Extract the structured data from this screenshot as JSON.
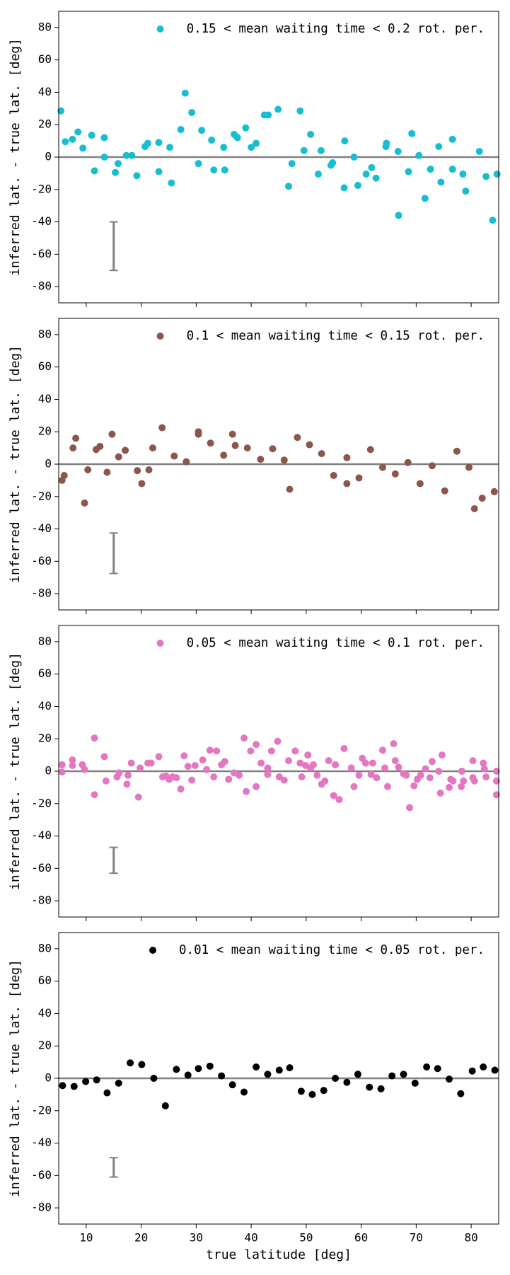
{
  "chart_data": [
    {
      "type": "scatter",
      "ylabel": "inferred lat. - true lat. [deg]",
      "xlim": [
        5,
        85
      ],
      "ylim": [
        -90,
        90
      ],
      "xticks": [
        10,
        20,
        30,
        40,
        50,
        60,
        70,
        80
      ],
      "xtick_labels": false,
      "yticks": [
        -80,
        -60,
        -40,
        -20,
        0,
        20,
        40,
        60,
        80
      ],
      "hline": 0,
      "legend": "upper right",
      "error_bar": {
        "x": 15,
        "y": -55,
        "err": 15,
        "color": "#808080"
      },
      "series": [
        {
          "name": "0.15 < mean waiting time < 0.2 rot. per.",
          "color": "#17becf",
          "x": [
            5.4,
            6.2,
            7.5,
            8.5,
            9.4,
            11,
            11.5,
            13.3,
            13.3,
            15.3,
            15.8,
            17.3,
            18.3,
            19.2,
            20.7,
            21.2,
            23.2,
            23.2,
            25.2,
            25.5,
            27.2,
            28,
            29.2,
            30.4,
            31,
            32.8,
            33.2,
            35,
            35.2,
            36.9,
            37.5,
            39,
            40,
            40.9,
            42.4,
            43.1,
            44.9,
            46.8,
            47.4,
            48.9,
            49.6,
            50.8,
            52.2,
            52.7,
            54.5,
            54.8,
            56.9,
            57,
            58.7,
            59.4,
            60.9,
            61.9,
            62.7,
            64.5,
            64.6,
            66.7,
            66.8,
            68.6,
            69.2,
            70.5,
            71.6,
            72.6,
            74.1,
            74.5,
            76.6,
            76.6,
            78.5,
            79,
            81.5,
            82.7,
            83.9,
            84.7
          ],
          "values": [
            28.5,
            9.5,
            11,
            15.5,
            5.5,
            13.5,
            -8.5,
            12,
            0,
            -9.5,
            -4,
            1,
            1,
            -11.5,
            6.5,
            8.5,
            9,
            -9,
            6,
            -16,
            17,
            39.5,
            27.5,
            -4,
            16.5,
            10.5,
            -8,
            6,
            -8,
            14,
            12,
            18,
            6,
            8.5,
            26,
            26,
            29.5,
            -18,
            -4,
            28.5,
            4,
            14,
            -10.5,
            4,
            -5,
            -3.5,
            -19,
            10,
            0,
            -17.5,
            -10.5,
            -6.5,
            -13,
            6.5,
            8.5,
            3.5,
            -36,
            -9,
            14.5,
            1,
            -25.5,
            -7.5,
            6.5,
            -15.5,
            11,
            -7.5,
            -10.5,
            -21,
            3.5,
            -12,
            -39,
            -10.5
          ]
        }
      ]
    },
    {
      "type": "scatter",
      "ylabel": "inferred lat. - true lat. [deg]",
      "xlim": [
        5,
        85
      ],
      "ylim": [
        -90,
        90
      ],
      "xticks": [
        10,
        20,
        30,
        40,
        50,
        60,
        70,
        80
      ],
      "xtick_labels": false,
      "yticks": [
        -80,
        -60,
        -40,
        -20,
        0,
        20,
        40,
        60,
        80
      ],
      "hline": 0,
      "legend": "upper right",
      "error_bar": {
        "x": 15,
        "y": -55,
        "err": 12.5,
        "color": "#808080"
      },
      "series": [
        {
          "name": "0.1 < mean waiting time < 0.15 rot. per.",
          "color": "#8c564b",
          "x": [
            5.6,
            6,
            7.6,
            8.1,
            9.7,
            10.3,
            11.8,
            12.5,
            13.8,
            14.7,
            15.9,
            17.1,
            19.3,
            20.1,
            21.4,
            22.1,
            23.8,
            26,
            28.2,
            30.4,
            30.4,
            32.6,
            35,
            36.6,
            37.1,
            39.3,
            41.7,
            43.9,
            46,
            47,
            48.4,
            50.6,
            52.8,
            55,
            57.4,
            57.4,
            59.6,
            61.7,
            63.9,
            66.2,
            68.5,
            70.7,
            72.9,
            75.2,
            77.4,
            79.6,
            80.6,
            82,
            84.2
          ],
          "values": [
            -10,
            -7,
            10,
            16,
            -24,
            -3.5,
            9,
            11,
            -5,
            18.5,
            4.5,
            8.5,
            -4,
            -12,
            -3.5,
            10,
            22.5,
            5,
            1.5,
            20,
            18.5,
            13,
            5.5,
            18.5,
            11.5,
            10,
            3,
            9.5,
            2.5,
            -15.5,
            16.5,
            12,
            6.5,
            -7,
            4,
            -12,
            -8.5,
            9,
            -2,
            -6,
            1,
            -12,
            -1,
            -16.5,
            8,
            -2,
            -27.5,
            -21,
            -17
          ]
        }
      ]
    },
    {
      "type": "scatter",
      "ylabel": "inferred lat. - true lat. [deg]",
      "xlim": [
        5,
        85
      ],
      "ylim": [
        -90,
        90
      ],
      "xticks": [
        10,
        20,
        30,
        40,
        50,
        60,
        70,
        80
      ],
      "xtick_labels": false,
      "yticks": [
        -80,
        -60,
        -40,
        -20,
        0,
        20,
        40,
        60,
        80
      ],
      "hline": 0,
      "legend": "upper right",
      "error_bar": {
        "x": 15,
        "y": -55,
        "err": 8,
        "color": "#808080"
      },
      "series": [
        {
          "name": "0.05 < mean waiting time < 0.1 rot. per.",
          "color": "#e377c2",
          "x": [
            5.6,
            5.6,
            7.5,
            7.5,
            9.3,
            9.7,
            11.5,
            11.5,
            13.3,
            13.6,
            15.6,
            16,
            17.4,
            17.6,
            18.2,
            19.5,
            19.8,
            21.2,
            21.8,
            23.2,
            23.9,
            24.5,
            25.1,
            25.7,
            26.4,
            27.2,
            27.8,
            28.5,
            29.2,
            29.8,
            31.2,
            31.9,
            32.5,
            33.2,
            33.7,
            34.6,
            35.2,
            35.9,
            36.9,
            37.8,
            38.7,
            39.1,
            39.9,
            40.9,
            40.9,
            41.8,
            43,
            43,
            43.7,
            44.8,
            45.1,
            46,
            46.8,
            48,
            48.9,
            49.2,
            49.9,
            50.3,
            50.8,
            51.3,
            52,
            52.8,
            53.4,
            54.1,
            55,
            55.3,
            56,
            56.9,
            58.2,
            58.7,
            59.6,
            60.2,
            60.8,
            61.8,
            62.1,
            62.8,
            63.9,
            64.3,
            64.8,
            65.9,
            66.2,
            66.8,
            67.7,
            68.2,
            68.8,
            69.6,
            70.2,
            70.8,
            71.7,
            72.5,
            72.9,
            74.1,
            74.4,
            74.7,
            76,
            76.3,
            76.7,
            78.2,
            78.3,
            78.6,
            80.3,
            80.3,
            80.6,
            82.2,
            82.4,
            82.7,
            84.6,
            84.6,
            84.6
          ],
          "values": [
            4,
            -0.5,
            7,
            3.5,
            4,
            1,
            20.5,
            -14.5,
            9,
            -6,
            -3.5,
            -1,
            -8,
            -2.5,
            5,
            -16,
            2,
            5,
            5,
            9,
            -3.5,
            -3,
            -5,
            -3.5,
            -4,
            -11,
            9.5,
            3,
            -5.5,
            3.5,
            7,
            1,
            13,
            -3.5,
            12.5,
            4,
            6,
            -5,
            -1,
            -2.5,
            20.5,
            -12.5,
            12.5,
            16.5,
            -9.5,
            5,
            2,
            -2,
            12.5,
            18.5,
            -3.5,
            -5.5,
            6.5,
            12.5,
            5,
            -3.5,
            3.5,
            10,
            2,
            4,
            -2.5,
            -8,
            -6,
            6.5,
            -15,
            4,
            -17.5,
            14,
            2,
            -9.5,
            -2.5,
            8,
            5,
            -2,
            5,
            -4,
            13,
            2,
            -9.5,
            17,
            6.5,
            2.5,
            -1.5,
            -2.5,
            -22.5,
            -9,
            -5,
            -2.5,
            1.5,
            -4,
            6,
            0,
            -13.5,
            10,
            -10,
            -5,
            -6,
            -9.5,
            0,
            -6,
            6.5,
            -4,
            -6,
            5,
            1.5,
            -3.5,
            0,
            -6,
            -14.5
          ]
        }
      ]
    },
    {
      "type": "scatter",
      "ylabel": "inferred lat. - true lat. [deg]",
      "xlabel": "true latitude [deg]",
      "xlim": [
        5,
        85
      ],
      "ylim": [
        -90,
        90
      ],
      "xticks": [
        10,
        20,
        30,
        40,
        50,
        60,
        70,
        80
      ],
      "xtick_labels": true,
      "yticks": [
        -80,
        -60,
        -40,
        -20,
        0,
        20,
        40,
        60,
        80
      ],
      "hline": 0,
      "legend": "upper right",
      "error_bar": {
        "x": 15,
        "y": -55,
        "err": 6,
        "color": "#808080"
      },
      "series": [
        {
          "name": "0.01 < mean waiting time < 0.05 rot. per.",
          "color": "#000000",
          "x": [
            5.7,
            7.8,
            9.9,
            11.9,
            13.8,
            15.9,
            18,
            20.1,
            22.3,
            24.4,
            26.4,
            28.5,
            30.4,
            32.5,
            34.6,
            36.6,
            38.7,
            40.9,
            43,
            45.1,
            47,
            49.1,
            51.1,
            53.2,
            55.3,
            57.4,
            59.4,
            61.5,
            63.6,
            65.6,
            67.7,
            69.8,
            71.9,
            73.9,
            76,
            78.1,
            80.2,
            82.2,
            84.3
          ],
          "values": [
            -4.5,
            -5,
            -2,
            -1,
            -9,
            -3,
            9.5,
            8.5,
            0,
            -17,
            5.5,
            2,
            6,
            7.5,
            1.5,
            -4,
            -8.5,
            7,
            2.5,
            5,
            6.5,
            -8,
            -10,
            -7.5,
            0,
            -2.5,
            2.5,
            -5.5,
            -6.5,
            1.5,
            2.5,
            -3,
            7,
            6,
            -0.5,
            -9.5,
            4.5,
            7,
            5
          ]
        }
      ]
    }
  ]
}
